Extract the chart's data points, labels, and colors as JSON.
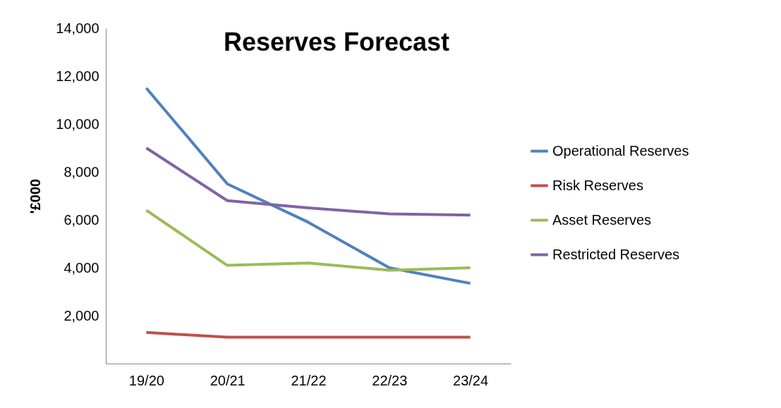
{
  "chart_data": {
    "type": "line",
    "title": "Reserves Forecast",
    "ylabel": "'£000",
    "categories": [
      "19/20",
      "20/21",
      "21/22",
      "22/23",
      "23/24"
    ],
    "series": [
      {
        "name": "Operational Reserves",
        "color": "#4f81bd",
        "values": [
          11500,
          7500,
          5900,
          4000,
          3350
        ]
      },
      {
        "name": "Risk Reserves",
        "color": "#c0504d",
        "values": [
          1300,
          1100,
          1100,
          1100,
          1100
        ]
      },
      {
        "name": "Asset Reserves",
        "color": "#9bbb59",
        "values": [
          6400,
          4100,
          4200,
          3900,
          4000
        ]
      },
      {
        "name": "Restricted Reserves",
        "color": "#8064a2",
        "values": [
          9000,
          6800,
          6500,
          6250,
          6200
        ]
      }
    ],
    "ylim": [
      0,
      14000
    ],
    "yticks": [
      {
        "value": 2000,
        "label": "2,000"
      },
      {
        "value": 4000,
        "label": "4,000"
      },
      {
        "value": 6000,
        "label": "6,000"
      },
      {
        "value": 8000,
        "label": "8,000"
      },
      {
        "value": 10000,
        "label": "10,000"
      },
      {
        "value": 12000,
        "label": "12,000"
      },
      {
        "value": 14000,
        "label": "14,000"
      }
    ],
    "grid": false,
    "legend": "right",
    "marker": "none"
  }
}
